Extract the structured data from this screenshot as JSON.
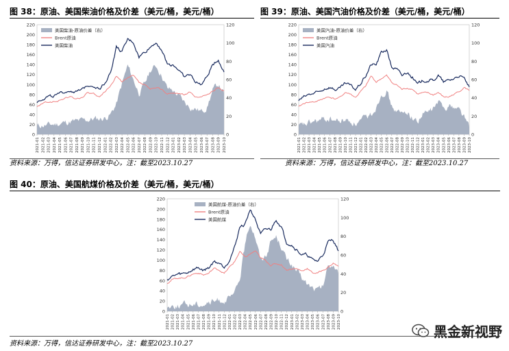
{
  "colors": {
    "diff_fill": "#a7b1c2",
    "brent_line": "#f08080",
    "us_line": "#16285c"
  },
  "source_text": "资料来源：万得，信达证券研发中心，注：截至2023.10.27",
  "watermark": {
    "text": "黑金新视野",
    "icon": "wechat-icon"
  },
  "date_labels": [
    "2021-01",
    "2021-02",
    "2021-03",
    "2021-04",
    "2021-05",
    "2021-06",
    "2021-07",
    "2021-08",
    "2021-09",
    "2021-10",
    "2021-11",
    "2021-12",
    "2022-01",
    "2022-02",
    "2022-03",
    "2022-04",
    "2022-05",
    "2022-06",
    "2022-07",
    "2022-08",
    "2022-09",
    "2022-10",
    "2022-11",
    "2022-12",
    "2023-01",
    "2023-02",
    "2023-03",
    "2023-04",
    "2023-05",
    "2023-06",
    "2023-07",
    "2023-08",
    "2023-09",
    "2023-10"
  ],
  "chart_data": [
    {
      "type": "area+line",
      "title": "图 38：原油、美国柴油价格及价差（美元/桶，美元/桶）",
      "left_axis": {
        "ylim": [
          0,
          220
        ],
        "ticks": [
          0,
          20,
          40,
          60,
          80,
          100,
          120,
          140,
          160,
          180,
          200,
          220
        ]
      },
      "right_axis": {
        "ylim": [
          0,
          120
        ],
        "ticks": [
          0,
          20,
          40,
          60,
          80,
          100,
          120
        ]
      },
      "x": [
        "2021-01",
        "2021-02",
        "2021-03",
        "2021-04",
        "2021-05",
        "2021-06",
        "2021-07",
        "2021-08",
        "2021-09",
        "2021-10",
        "2021-11",
        "2021-12",
        "2022-01",
        "2022-02",
        "2022-03",
        "2022-04",
        "2022-05",
        "2022-06",
        "2022-07",
        "2022-08",
        "2022-09",
        "2022-10",
        "2022-11",
        "2022-12",
        "2023-01",
        "2023-02",
        "2023-03",
        "2023-04",
        "2023-05",
        "2023-06",
        "2023-07",
        "2023-08",
        "2023-09",
        "2023-10"
      ],
      "legend_position": "top-left",
      "series": [
        {
          "name": "美国柴油-原油价差（右）",
          "kind": "area",
          "axis": "right",
          "values": [
            9,
            10,
            10,
            11,
            12,
            13,
            14,
            14,
            15,
            16,
            17,
            17,
            18,
            22,
            33,
            55,
            75,
            60,
            45,
            55,
            70,
            75,
            65,
            50,
            48,
            42,
            35,
            30,
            28,
            25,
            30,
            48,
            55,
            45
          ]
        },
        {
          "name": "Brent原油",
          "kind": "line",
          "axis": "left",
          "values": [
            55,
            62,
            65,
            65,
            68,
            73,
            75,
            71,
            74,
            84,
            81,
            74,
            86,
            97,
            117,
            105,
            112,
            118,
            104,
            99,
            90,
            93,
            91,
            81,
            83,
            83,
            79,
            84,
            75,
            75,
            80,
            86,
            94,
            88
          ]
        },
        {
          "name": "美国柴油",
          "kind": "line",
          "axis": "left",
          "values": [
            65,
            72,
            76,
            77,
            80,
            86,
            88,
            85,
            89,
            100,
            98,
            91,
            104,
            125,
            175,
            165,
            190,
            185,
            155,
            165,
            175,
            185,
            170,
            140,
            140,
            130,
            115,
            120,
            105,
            100,
            115,
            140,
            150,
            125
          ]
        }
      ]
    },
    {
      "type": "area+line",
      "title": "图 39：原油、美国汽油价格及价差（美元/桶，美元/桶）",
      "left_axis": {
        "ylim": [
          0,
          220
        ],
        "ticks": [
          0,
          20,
          40,
          60,
          80,
          100,
          120,
          140,
          160,
          180,
          200,
          220
        ]
      },
      "right_axis": {
        "ylim": [
          0,
          120
        ],
        "ticks": [
          0,
          20,
          40,
          60,
          80,
          100,
          120
        ]
      },
      "x": [
        "2021-01",
        "2021-02",
        "2021-03",
        "2021-04",
        "2021-05",
        "2021-06",
        "2021-07",
        "2021-08",
        "2021-09",
        "2021-10",
        "2021-11",
        "2021-12",
        "2022-01",
        "2022-02",
        "2022-03",
        "2022-04",
        "2022-05",
        "2022-06",
        "2022-07",
        "2022-08",
        "2022-09",
        "2022-10",
        "2022-11",
        "2022-12",
        "2023-01",
        "2023-02",
        "2023-03",
        "2023-04",
        "2023-05",
        "2023-06",
        "2023-07",
        "2023-08",
        "2023-09",
        "2023-10"
      ],
      "legend_position": "top-left",
      "series": [
        {
          "name": "美国汽油-原油价差（右）",
          "kind": "area",
          "axis": "right",
          "values": [
            8,
            10,
            12,
            14,
            15,
            16,
            17,
            15,
            14,
            16,
            14,
            12,
            14,
            18,
            22,
            30,
            45,
            48,
            30,
            25,
            22,
            25,
            18,
            14,
            22,
            24,
            28,
            35,
            30,
            32,
            30,
            28,
            20,
            8
          ]
        },
        {
          "name": "Brent原油",
          "kind": "line",
          "axis": "left",
          "values": [
            55,
            62,
            65,
            65,
            68,
            73,
            75,
            71,
            74,
            84,
            81,
            74,
            86,
            97,
            117,
            105,
            112,
            118,
            104,
            99,
            90,
            93,
            91,
            81,
            83,
            83,
            79,
            84,
            75,
            75,
            80,
            86,
            94,
            88
          ]
        },
        {
          "name": "美国汽油",
          "kind": "line",
          "axis": "left",
          "values": [
            68,
            75,
            80,
            82,
            85,
            92,
            95,
            90,
            92,
            102,
            98,
            90,
            102,
            118,
            140,
            140,
            165,
            170,
            135,
            130,
            118,
            125,
            115,
            100,
            108,
            108,
            108,
            118,
            105,
            108,
            112,
            118,
            112,
            95
          ]
        }
      ]
    },
    {
      "type": "area+line",
      "title": "图 40：原油、美国航煤价格及价差（美元/桶，美元/桶）",
      "left_axis": {
        "ylim": [
          0,
          220
        ],
        "ticks": [
          0,
          20,
          40,
          60,
          80,
          100,
          120,
          140,
          160,
          180,
          200,
          220
        ]
      },
      "right_axis": {
        "ylim": [
          0,
          120
        ],
        "ticks": [
          0,
          20,
          40,
          60,
          80,
          100,
          120
        ]
      },
      "x": [
        "2021-01",
        "2021-02",
        "2021-03",
        "2021-04",
        "2021-05",
        "2021-06",
        "2021-07",
        "2021-08",
        "2021-09",
        "2021-10",
        "2021-11",
        "2021-12",
        "2022-01",
        "2022-02",
        "2022-03",
        "2022-04",
        "2022-05",
        "2022-06",
        "2022-07",
        "2022-08",
        "2022-09",
        "2022-10",
        "2022-11",
        "2022-12",
        "2023-01",
        "2023-02",
        "2023-03",
        "2023-04",
        "2023-05",
        "2023-06",
        "2023-07",
        "2023-08",
        "2023-09",
        "2023-10"
      ],
      "legend_position": "top-center",
      "series": [
        {
          "name": "美国航煤-原油价差（右）",
          "kind": "area",
          "axis": "right",
          "values": [
            5,
            6,
            6,
            7,
            7,
            8,
            8,
            8,
            9,
            10,
            12,
            12,
            13,
            18,
            35,
            70,
            95,
            80,
            55,
            60,
            75,
            80,
            70,
            55,
            50,
            42,
            35,
            28,
            25,
            22,
            26,
            48,
            50,
            40
          ]
        },
        {
          "name": "Brent原油",
          "kind": "line",
          "axis": "left",
          "values": [
            55,
            62,
            65,
            65,
            68,
            73,
            75,
            71,
            74,
            84,
            81,
            74,
            86,
            97,
            117,
            105,
            112,
            118,
            104,
            99,
            90,
            93,
            91,
            81,
            83,
            83,
            79,
            84,
            75,
            75,
            80,
            86,
            94,
            88
          ]
        },
        {
          "name": "美国航煤",
          "kind": "line",
          "axis": "left",
          "values": [
            62,
            68,
            72,
            73,
            76,
            82,
            85,
            80,
            85,
            97,
            95,
            87,
            101,
            125,
            165,
            170,
            200,
            180,
            150,
            160,
            160,
            180,
            165,
            135,
            130,
            120,
            110,
            110,
            100,
            98,
            110,
            135,
            140,
            118
          ]
        }
      ]
    }
  ]
}
